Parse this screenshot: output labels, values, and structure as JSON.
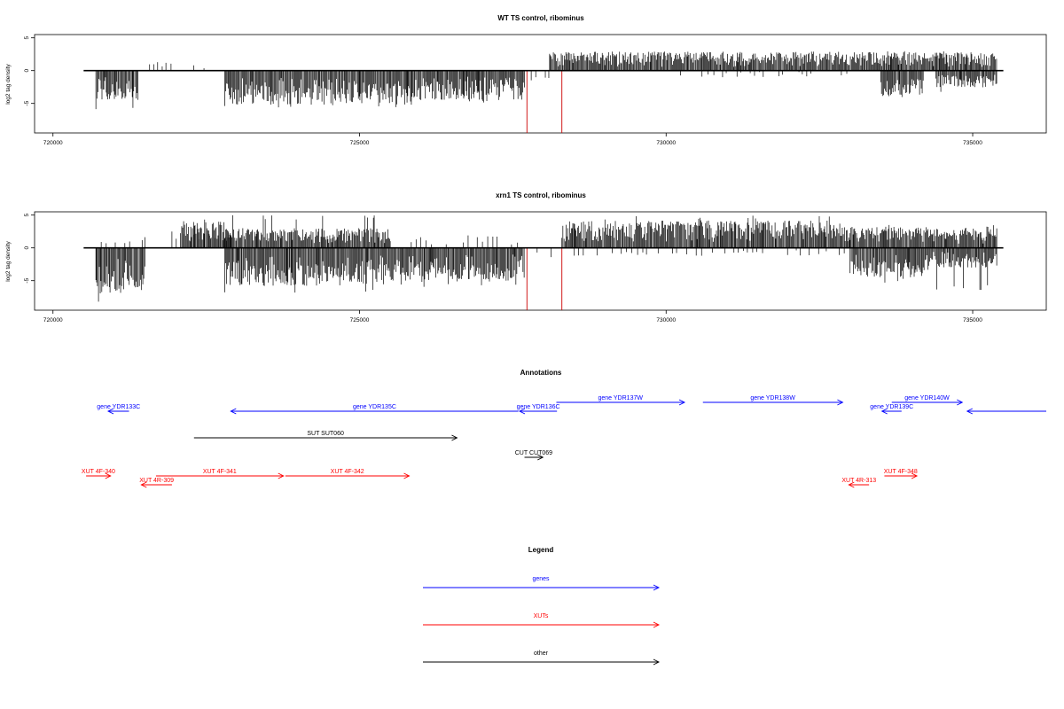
{
  "chart_data": [
    {
      "type": "bar",
      "title": "WT TS control, ribominus",
      "xlabel": "",
      "ylabel": "log2 tag density",
      "xlim": [
        719700,
        736200
      ],
      "ylim": [
        -9.5,
        5.5
      ],
      "x_ticks": [
        720000,
        725000,
        730000,
        735000
      ],
      "y_ticks": [
        5,
        0,
        -5
      ],
      "baseline_range": [
        720500,
        735500
      ],
      "series_profile": [
        {
          "start": 720700,
          "end": 721400,
          "direction": "down",
          "max": 4.5,
          "peak": 6.3
        },
        {
          "start": 721500,
          "end": 722600,
          "direction": "up",
          "max": 1.6,
          "sparse": true
        },
        {
          "start": 722800,
          "end": 725900,
          "direction": "down",
          "max": 5.2,
          "peak": 6.0
        },
        {
          "start": 725900,
          "end": 727700,
          "direction": "down",
          "max": 4.5,
          "peak": 5.0
        },
        {
          "start": 727800,
          "end": 728100,
          "direction": "down",
          "max": 1.5,
          "sparse": true
        },
        {
          "start": 728100,
          "end": 733500,
          "direction": "up",
          "max": 2.9,
          "peak": 3.0
        },
        {
          "start": 730000,
          "end": 733000,
          "direction": "down",
          "max": 1.0,
          "sparse": true
        },
        {
          "start": 733500,
          "end": 734200,
          "direction": "down",
          "max": 3.8,
          "peak": 4.3
        },
        {
          "start": 733500,
          "end": 735400,
          "direction": "up",
          "max": 2.8,
          "peak": 3.0
        },
        {
          "start": 734400,
          "end": 735400,
          "direction": "down",
          "max": 2.6,
          "peak": 3.5
        }
      ],
      "markers": [
        {
          "x": 727730,
          "y": -9.5,
          "color": "#cc0000"
        },
        {
          "x": 728300,
          "y": -9.5,
          "color": "#cc0000"
        }
      ]
    },
    {
      "type": "bar",
      "title": "xrn1 TS control, ribominus",
      "xlabel": "",
      "ylabel": "log2 tag density",
      "xlim": [
        719700,
        736200
      ],
      "ylim": [
        -9.5,
        5.5
      ],
      "x_ticks": [
        720000,
        725000,
        730000,
        735000
      ],
      "y_ticks": [
        5,
        0,
        -5
      ],
      "baseline_range": [
        720500,
        735500
      ],
      "series_profile": [
        {
          "start": 720700,
          "end": 721500,
          "direction": "down",
          "max": 7.0,
          "peak": 9.3
        },
        {
          "start": 720700,
          "end": 721500,
          "direction": "up",
          "max": 1.5,
          "sparse": true
        },
        {
          "start": 721500,
          "end": 722800,
          "direction": "up",
          "max": 2.5,
          "sparse": true
        },
        {
          "start": 722100,
          "end": 722900,
          "direction": "up",
          "max": 4.0,
          "peak": 4.5
        },
        {
          "start": 722800,
          "end": 725500,
          "direction": "down",
          "max": 5.8,
          "peak": 7.0
        },
        {
          "start": 722800,
          "end": 725500,
          "direction": "up",
          "max": 3.0,
          "peak": 5.0
        },
        {
          "start": 725500,
          "end": 727700,
          "direction": "down",
          "max": 5.0,
          "peak": 6.0
        },
        {
          "start": 725500,
          "end": 727700,
          "direction": "up",
          "max": 2.0,
          "sparse": true
        },
        {
          "start": 727800,
          "end": 728150,
          "direction": "down",
          "max": 1.5,
          "sparse": true
        },
        {
          "start": 728300,
          "end": 733000,
          "direction": "up",
          "max": 4.2,
          "peak": 5.0
        },
        {
          "start": 728300,
          "end": 733000,
          "direction": "down",
          "max": 1.2,
          "sparse": true
        },
        {
          "start": 733000,
          "end": 734300,
          "direction": "up",
          "max": 3.2,
          "peak": 3.5
        },
        {
          "start": 733000,
          "end": 734300,
          "direction": "down",
          "max": 4.5,
          "peak": 5.5
        },
        {
          "start": 734300,
          "end": 735400,
          "direction": "up",
          "max": 3.0,
          "peak": 3.5
        },
        {
          "start": 734300,
          "end": 735400,
          "direction": "down",
          "max": 3.0,
          "peak": 6.5
        }
      ],
      "markers": [
        {
          "x": 727730,
          "y": -9.5,
          "color": "#cc0000"
        },
        {
          "x": 728300,
          "y": -9.5,
          "color": "#cc0000"
        }
      ]
    }
  ],
  "annotations": {
    "title": "Annotations",
    "features": [
      {
        "label": "gene YDR133C",
        "start": 720900,
        "end": 721240,
        "strand": "-",
        "row": 2,
        "color": "#0000ff"
      },
      {
        "label": "gene YDR135C",
        "start": 722900,
        "end": 727590,
        "strand": "-",
        "row": 2,
        "color": "#0000ff"
      },
      {
        "label": "gene YDR136C",
        "start": 727610,
        "end": 728220,
        "strand": "-",
        "row": 2,
        "color": "#0000ff"
      },
      {
        "label": "gene YDR137W",
        "start": 728210,
        "end": 730300,
        "strand": "+",
        "row": 1,
        "color": "#0000ff"
      },
      {
        "label": "gene YDR138W",
        "start": 730600,
        "end": 732880,
        "strand": "+",
        "row": 1,
        "color": "#0000ff"
      },
      {
        "label": "gene YDR139C",
        "start": 733520,
        "end": 733840,
        "strand": "-",
        "row": 2,
        "color": "#0000ff"
      },
      {
        "label": "gene YDR140W",
        "start": 733680,
        "end": 734830,
        "strand": "+",
        "row": 1,
        "color": "#0000ff"
      },
      {
        "label": "",
        "start": 734910,
        "end": 736200,
        "strand": "-",
        "row": 2,
        "color": "#0000ff"
      },
      {
        "label": "SUT SUT060",
        "start": 722300,
        "end": 726590,
        "strand": "+",
        "row": 3,
        "color": "#000000"
      },
      {
        "label": "CUT CUT069",
        "start": 727690,
        "end": 727990,
        "strand": "+",
        "row": 4,
        "color": "#000000"
      },
      {
        "label": "XUT 4F-340",
        "start": 720540,
        "end": 720940,
        "strand": "+",
        "row": 5,
        "color": "#ff0000"
      },
      {
        "label": "XUT 4F-341",
        "start": 721680,
        "end": 723760,
        "strand": "+",
        "row": 5,
        "color": "#ff0000"
      },
      {
        "label": "XUT 4F-342",
        "start": 723790,
        "end": 725810,
        "strand": "+",
        "row": 5,
        "color": "#ff0000"
      },
      {
        "label": "XUT 4R-309",
        "start": 721440,
        "end": 721940,
        "strand": "-",
        "row": 6,
        "color": "#ff0000"
      },
      {
        "label": "XUT 4R-313",
        "start": 732980,
        "end": 733310,
        "strand": "-",
        "row": 6,
        "color": "#ff0000"
      },
      {
        "label": "XUT 4F-348",
        "start": 733560,
        "end": 734090,
        "strand": "+",
        "row": 5,
        "color": "#ff0000"
      }
    ]
  },
  "legend": {
    "title": "Legend",
    "items": [
      {
        "label": "genes",
        "color": "#0000ff"
      },
      {
        "label": "XUTs",
        "color": "#ff0000"
      },
      {
        "label": "other",
        "color": "#000000"
      }
    ]
  }
}
